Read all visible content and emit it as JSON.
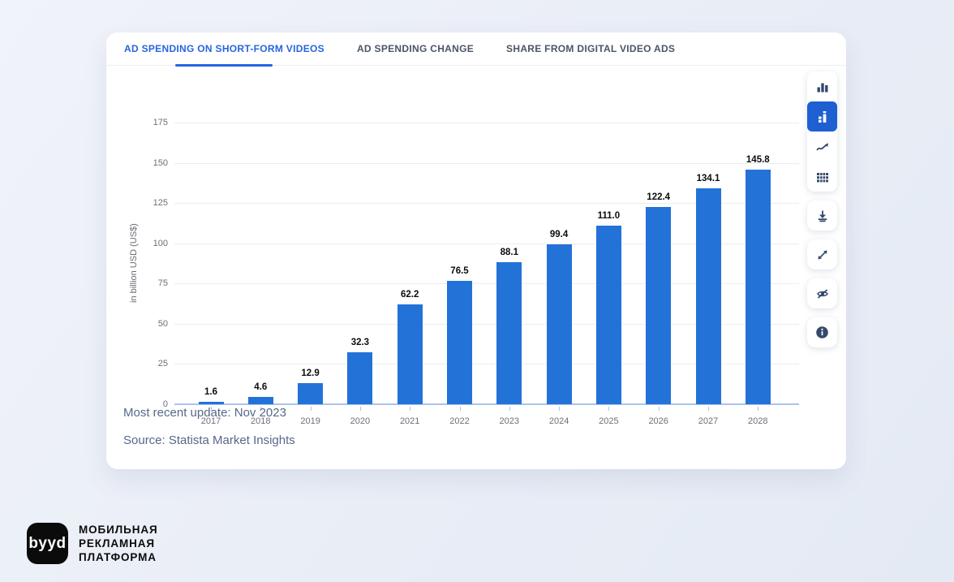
{
  "colors": {
    "page_bg": "#e9edf6",
    "card_bg": "#ffffff",
    "accent_blue": "#2565e0",
    "bar_blue": "#2372d8",
    "selected_tool_bg": "#1e5fd2",
    "icon_color": "#35496b",
    "grid_line": "#ededf1",
    "axis_line": "#aac4ee",
    "tick_text": "#6e6e78",
    "footer_text": "#56688a",
    "inactive_tab": "#4b5565",
    "logo_bg": "#0b0b0b"
  },
  "tabs": [
    {
      "label": "AD SPENDING ON SHORT-FORM VIDEOS",
      "active": true
    },
    {
      "label": "AD SPENDING CHANGE",
      "active": false
    },
    {
      "label": "SHARE FROM DIGITAL VIDEO ADS",
      "active": false
    }
  ],
  "chart_data": {
    "type": "bar",
    "categories": [
      "2017",
      "2018",
      "2019",
      "2020",
      "2021",
      "2022",
      "2023",
      "2024",
      "2025",
      "2026",
      "2027",
      "2028"
    ],
    "values": [
      1.6,
      4.6,
      12.9,
      32.3,
      62.2,
      76.5,
      88.1,
      99.4,
      111.0,
      122.4,
      134.1,
      145.8
    ],
    "value_labels": [
      "1.6",
      "4.6",
      "12.9",
      "32.3",
      "62.2",
      "76.5",
      "88.1",
      "99.4",
      "111.0",
      "122.4",
      "134.1",
      "145.8"
    ],
    "title": "",
    "xlabel": "",
    "ylabel": "in billion USD (US$)",
    "ylim": [
      0,
      175
    ],
    "yticks": [
      0,
      25,
      50,
      75,
      100,
      125,
      150,
      175
    ],
    "grid": true,
    "legend": false,
    "bar_color": "#2372d8"
  },
  "footer": {
    "update": "Most recent update: Nov 2023",
    "source": "Source: Statista Market Insights"
  },
  "toolbar": {
    "chart_type_buttons": [
      {
        "icon": "bar-chart-icon",
        "selected": false
      },
      {
        "icon": "column-chart-icon",
        "selected": true
      },
      {
        "icon": "line-chart-icon",
        "selected": false
      },
      {
        "icon": "table-icon",
        "selected": false
      }
    ],
    "action_buttons": [
      {
        "icon": "download-icon"
      },
      {
        "icon": "expand-icon"
      },
      {
        "icon": "hide-labels-icon"
      },
      {
        "icon": "info-icon"
      }
    ]
  },
  "logo": {
    "mark": "byyd",
    "line1": "МОБИЛЬНАЯ",
    "line2": "РЕКЛАМНАЯ",
    "line3": "ПЛАТФОРМА"
  }
}
